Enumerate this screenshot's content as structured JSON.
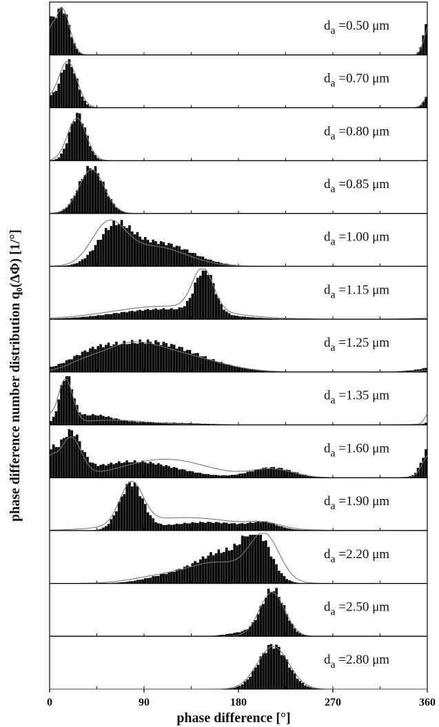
{
  "chart_data": {
    "type": "bar",
    "description_type": "stacked histogram panels with fitted curve overlay",
    "xlabel": "phase difference [°]",
    "ylabel": "phase difference number distribution q₀(ΔΦ) [1/°]",
    "xlim": [
      0,
      360
    ],
    "x_ticks": [
      "0",
      "90",
      "180",
      "270",
      "360"
    ],
    "bin_width_deg": 2.5,
    "panels": [
      {
        "label": "d",
        "sub": "a",
        "value": " =0.50 μm",
        "hist": [
          [
            12,
            7,
            1.0
          ],
          [
            0,
            4,
            0.15
          ],
          [
            360,
            4,
            0.35
          ]
        ],
        "curve": [
          [
            12,
            7,
            1.0
          ],
          [
            0,
            4,
            0.15
          ],
          [
            360,
            4,
            0.2
          ]
        ]
      },
      {
        "label": "d",
        "sub": "a",
        "value": " =0.70 μm",
        "hist": [
          [
            18,
            8,
            1.0
          ],
          [
            0,
            4,
            0.05
          ],
          [
            360,
            4,
            0.12
          ]
        ],
        "curve": [
          [
            17,
            9,
            1.0
          ],
          [
            360,
            4,
            0.1
          ]
        ]
      },
      {
        "label": "d",
        "sub": "a",
        "value": " =0.80 μm",
        "hist": [
          [
            27,
            8,
            1.0
          ]
        ],
        "curve": [
          [
            26,
            9,
            0.92
          ]
        ]
      },
      {
        "label": "d",
        "sub": "a",
        "value": " =0.85 μm",
        "hist": [
          [
            40,
            12,
            1.0
          ]
        ],
        "curve": [
          [
            40,
            12,
            0.95
          ]
        ]
      },
      {
        "label": "d",
        "sub": "a",
        "value": " =1.00 μm",
        "hist": [
          [
            62,
            16,
            0.75
          ],
          [
            105,
            30,
            0.5
          ]
        ],
        "curve": [
          [
            56,
            16,
            0.85
          ],
          [
            100,
            30,
            0.42
          ]
        ]
      },
      {
        "label": "d",
        "sub": "a",
        "value": " =1.15 μm",
        "hist": [
          [
            148,
            9,
            0.95
          ],
          [
            110,
            45,
            0.22
          ]
        ],
        "curve": [
          [
            146,
            10,
            0.9
          ],
          [
            110,
            50,
            0.28
          ]
        ]
      },
      {
        "label": "d",
        "sub": "a",
        "value": " =1.25 μm",
        "hist": [
          [
            95,
            45,
            0.65
          ],
          [
            40,
            20,
            0.2
          ]
        ],
        "curve": [
          [
            75,
            30,
            0.55
          ],
          [
            130,
            35,
            0.3
          ],
          [
            30,
            15,
            0.1
          ]
        ]
      },
      {
        "label": "d",
        "sub": "a",
        "value": " =1.35 μm",
        "hist": [
          [
            16,
            6,
            1.0
          ],
          [
            40,
            20,
            0.2
          ],
          [
            100,
            40,
            0.05
          ]
        ],
        "curve": [
          [
            15,
            7,
            0.95
          ],
          [
            60,
            35,
            0.1
          ],
          [
            360,
            3,
            0.12
          ]
        ]
      },
      {
        "label": "d",
        "sub": "a",
        "value": " =1.60 μm",
        "hist": [
          [
            20,
            10,
            0.9
          ],
          [
            80,
            40,
            0.35
          ],
          [
            212,
            20,
            0.22
          ],
          [
            360,
            6,
            0.45
          ]
        ],
        "curve": [
          [
            20,
            10,
            0.85
          ],
          [
            110,
            40,
            0.4
          ],
          [
            212,
            20,
            0.18
          ],
          [
            360,
            6,
            0.35
          ]
        ]
      },
      {
        "label": "d",
        "sub": "a",
        "value": " =1.90 μm",
        "hist": [
          [
            78,
            11,
            1.0
          ],
          [
            150,
            40,
            0.18
          ],
          [
            205,
            12,
            0.12
          ]
        ],
        "curve": [
          [
            78,
            11,
            0.9
          ],
          [
            130,
            50,
            0.28
          ],
          [
            205,
            15,
            0.1
          ]
        ]
      },
      {
        "label": "d",
        "sub": "a",
        "value": " =2.20 μm",
        "hist": [
          [
            198,
            13,
            0.95
          ],
          [
            165,
            22,
            0.62
          ],
          [
            120,
            25,
            0.2
          ]
        ],
        "curve": [
          [
            205,
            14,
            0.95
          ],
          [
            160,
            30,
            0.45
          ],
          [
            100,
            25,
            0.12
          ]
        ]
      },
      {
        "label": "d",
        "sub": "a",
        "value": " =2.50 μm",
        "hist": [
          [
            213,
            11,
            1.0
          ],
          [
            185,
            15,
            0.08
          ]
        ],
        "curve": [
          [
            212,
            12,
            0.95
          ]
        ]
      },
      {
        "label": "d",
        "sub": "a",
        "value": " =2.80 μm",
        "hist": [
          [
            213,
            14,
            0.95
          ]
        ],
        "curve": [
          [
            213,
            15,
            0.92
          ]
        ]
      }
    ]
  }
}
